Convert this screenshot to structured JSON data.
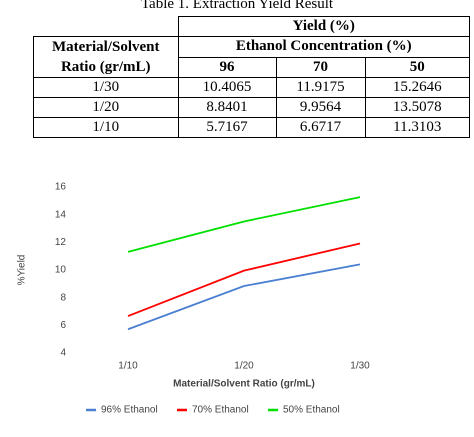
{
  "table": {
    "caption": "Table 1. Extraction Yield Result",
    "top_header": "Yield (%)",
    "row_header": "Material/Solvent Ratio (gr/mL)",
    "group_header": "Ethanol Concentration (%)",
    "columns": [
      "96",
      "70",
      "50"
    ],
    "rows": [
      [
        "1/30",
        "10.4065",
        "11.9175",
        "15.2646"
      ],
      [
        "1/20",
        "8.8401",
        "9.9564",
        "13.5078"
      ],
      [
        "1/10",
        "5.7167",
        "6.6717",
        "11.3103"
      ]
    ]
  },
  "chart_data": {
    "type": "line",
    "x_label": "Material/Solvent Ratio (gr/mL)",
    "y_label": "%Yield",
    "categories": [
      "1/10",
      "1/20",
      "1/30"
    ],
    "series": [
      {
        "name": "96% Ethanol",
        "color": "#4a7fd1",
        "values": [
          5.7167,
          8.8401,
          10.4065
        ]
      },
      {
        "name": "70% Ethanol",
        "color": "#ff0000",
        "values": [
          6.6717,
          9.9564,
          11.9175
        ]
      },
      {
        "name": "50% Ethanol",
        "color": "#00e000",
        "values": [
          11.3103,
          13.5078,
          15.2646
        ]
      }
    ],
    "ylim": [
      4,
      16
    ],
    "yticks": [
      4,
      6,
      8,
      10,
      12,
      14,
      16
    ],
    "legend": "bottom"
  }
}
